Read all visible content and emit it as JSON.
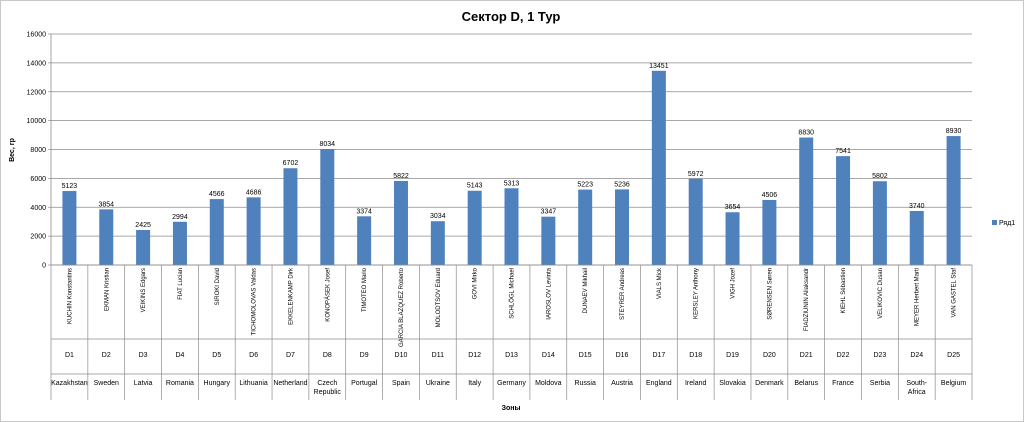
{
  "chart_data": {
    "type": "bar",
    "title": "Сектор D, 1 Тур",
    "ylabel": "Вес, гр",
    "xlabel": "Зоны",
    "ylim": [
      0,
      16000
    ],
    "yticks": [
      0,
      2000,
      4000,
      6000,
      8000,
      10000,
      12000,
      14000,
      16000
    ],
    "grid": true,
    "legend": "right",
    "bar_color": "#4f81bd",
    "series": [
      {
        "name": "Ряд1",
        "values": [
          5123,
          3854,
          2425,
          2994,
          4566,
          4686,
          6702,
          8034,
          3374,
          5822,
          3034,
          5143,
          5313,
          3347,
          5223,
          5236,
          13451,
          5972,
          3654,
          4506,
          8830,
          7541,
          5802,
          3740,
          8930
        ]
      }
    ],
    "categories": [
      {
        "name": "KUCHIN Konstantins",
        "zone": "D1",
        "country": "Kazakhstan"
      },
      {
        "name": "EKMAN Kristian",
        "zone": "D2",
        "country": "Sweden"
      },
      {
        "name": "VEIKINS Edgars",
        "zone": "D3",
        "country": "Latvia"
      },
      {
        "name": "FIAT Lucian",
        "zone": "D4",
        "country": "Romania"
      },
      {
        "name": "SIROKI David",
        "zone": "D5",
        "country": "Hungary"
      },
      {
        "name": "TICHOMOLOVAS Valdas",
        "zone": "D6",
        "country": "Lithuania"
      },
      {
        "name": "EKKELENKAMP Dirk",
        "zone": "D7",
        "country": "Netherland"
      },
      {
        "name": "KONOPÁSEK Josef",
        "zone": "D8",
        "country": "Czech Republic"
      },
      {
        "name": "TIMOTEO Mario",
        "zone": "D9",
        "country": "Portugal"
      },
      {
        "name": "GARCIA BLAZQUEZ Roberto",
        "zone": "D10",
        "country": "Spain"
      },
      {
        "name": "MOLODTSOV Eduard",
        "zone": "D11",
        "country": "Ukraine"
      },
      {
        "name": "GOVI Mirko",
        "zone": "D12",
        "country": "Italy"
      },
      {
        "name": "SCHLÖGL Michael",
        "zone": "D13",
        "country": "Germany"
      },
      {
        "name": "IAROSLOV Levinta",
        "zone": "D14",
        "country": "Moldova"
      },
      {
        "name": "DUNAEV Mikhail",
        "zone": "D15",
        "country": "Russia"
      },
      {
        "name": "STEYRER Andreas",
        "zone": "D16",
        "country": "Austria"
      },
      {
        "name": "VIALS Mick",
        "zone": "D17",
        "country": "England"
      },
      {
        "name": "KERSLEY Anthony",
        "zone": "D18",
        "country": "Ireland"
      },
      {
        "name": "VIGH Jozef",
        "zone": "D19",
        "country": "Slovakia"
      },
      {
        "name": "SØRENSEN Søren",
        "zone": "D20",
        "country": "Denmark"
      },
      {
        "name": "FIADZIUNIN Aliaksandr",
        "zone": "D21",
        "country": "Belarus"
      },
      {
        "name": "KIEHL Sébastien",
        "zone": "D22",
        "country": "France"
      },
      {
        "name": "VELIKOVIC Dusan",
        "zone": "D23",
        "country": "Serbia"
      },
      {
        "name": "MEYER Herbert Marti",
        "zone": "D24",
        "country": "South-Africa"
      },
      {
        "name": "VAN GASTEL Staf",
        "zone": "D25",
        "country": "Belgium"
      }
    ]
  }
}
